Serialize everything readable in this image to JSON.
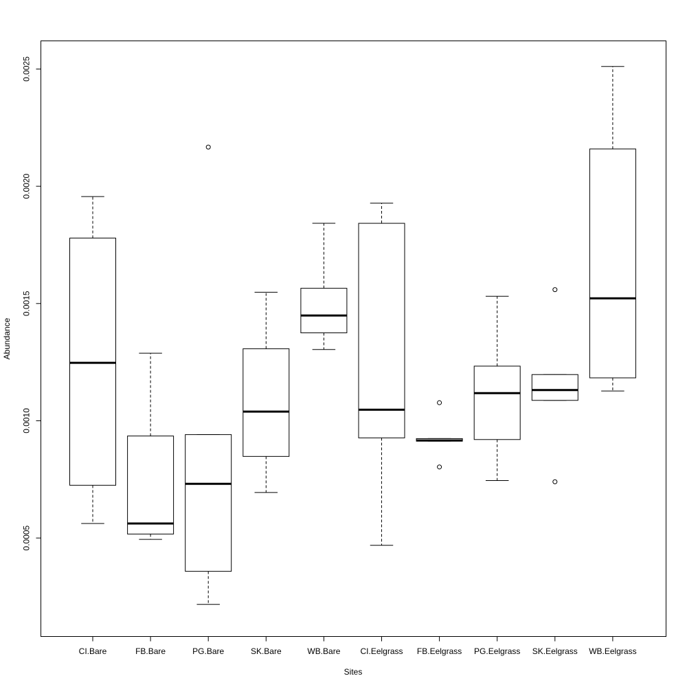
{
  "chart_data": {
    "type": "box",
    "title": "",
    "xlabel": "Sites",
    "ylabel": "Abundance",
    "ylim": [
      8e-05,
      0.00262
    ],
    "y_ticks": [
      "0.0005",
      "0.0010",
      "0.0015",
      "0.0020",
      "0.0025"
    ],
    "y_tick_values": [
      0.0005,
      0.001,
      0.0015,
      0.002,
      0.0025
    ],
    "grid": false,
    "categories": [
      "CI.Bare",
      "FB.Bare",
      "PG.Bare",
      "SK.Bare",
      "WB.Bare",
      "CI.Eelgrass",
      "FB.Eelgrass",
      "PG.Eelgrass",
      "SK.Eelgrass",
      "WB.Eelgrass"
    ],
    "boxes": [
      {
        "whisker_low": 0.000562,
        "q1": 0.000725,
        "median": 0.001247,
        "q3": 0.001779,
        "whisker_high": 0.001956,
        "outliers": []
      },
      {
        "whisker_low": 0.000494,
        "q1": 0.000517,
        "median": 0.000562,
        "q3": 0.000935,
        "whisker_high": 0.001288,
        "outliers": []
      },
      {
        "whisker_low": 0.000217,
        "q1": 0.000358,
        "median": 0.000731,
        "q3": 0.000941,
        "whisker_high": 0.000941,
        "outliers": [
          0.002167
        ]
      },
      {
        "whisker_low": 0.000694,
        "q1": 0.000848,
        "median": 0.001039,
        "q3": 0.001307,
        "whisker_high": 0.001548,
        "outliers": []
      },
      {
        "whisker_low": 0.001304,
        "q1": 0.001375,
        "median": 0.001449,
        "q3": 0.001565,
        "whisker_high": 0.001842,
        "outliers": []
      },
      {
        "whisker_low": 0.000469,
        "q1": 0.000927,
        "median": 0.001047,
        "q3": 0.001842,
        "whisker_high": 0.001928,
        "outliers": []
      },
      {
        "whisker_low": 0.000913,
        "q1": 0.000913,
        "median": 0.000916,
        "q3": 0.000924,
        "whisker_high": 0.000924,
        "outliers": [
          0.001077,
          0.000803
        ]
      },
      {
        "whisker_low": 0.000745,
        "q1": 0.00092,
        "median": 0.001118,
        "q3": 0.001233,
        "whisker_high": 0.001531,
        "outliers": []
      },
      {
        "whisker_low": 0.001087,
        "q1": 0.001087,
        "median": 0.001131,
        "q3": 0.001197,
        "whisker_high": 0.001197,
        "outliers": [
          0.001559,
          0.00074
        ]
      },
      {
        "whisker_low": 0.001127,
        "q1": 0.001183,
        "median": 0.001522,
        "q3": 0.002159,
        "whisker_high": 0.002511,
        "outliers": []
      }
    ]
  }
}
